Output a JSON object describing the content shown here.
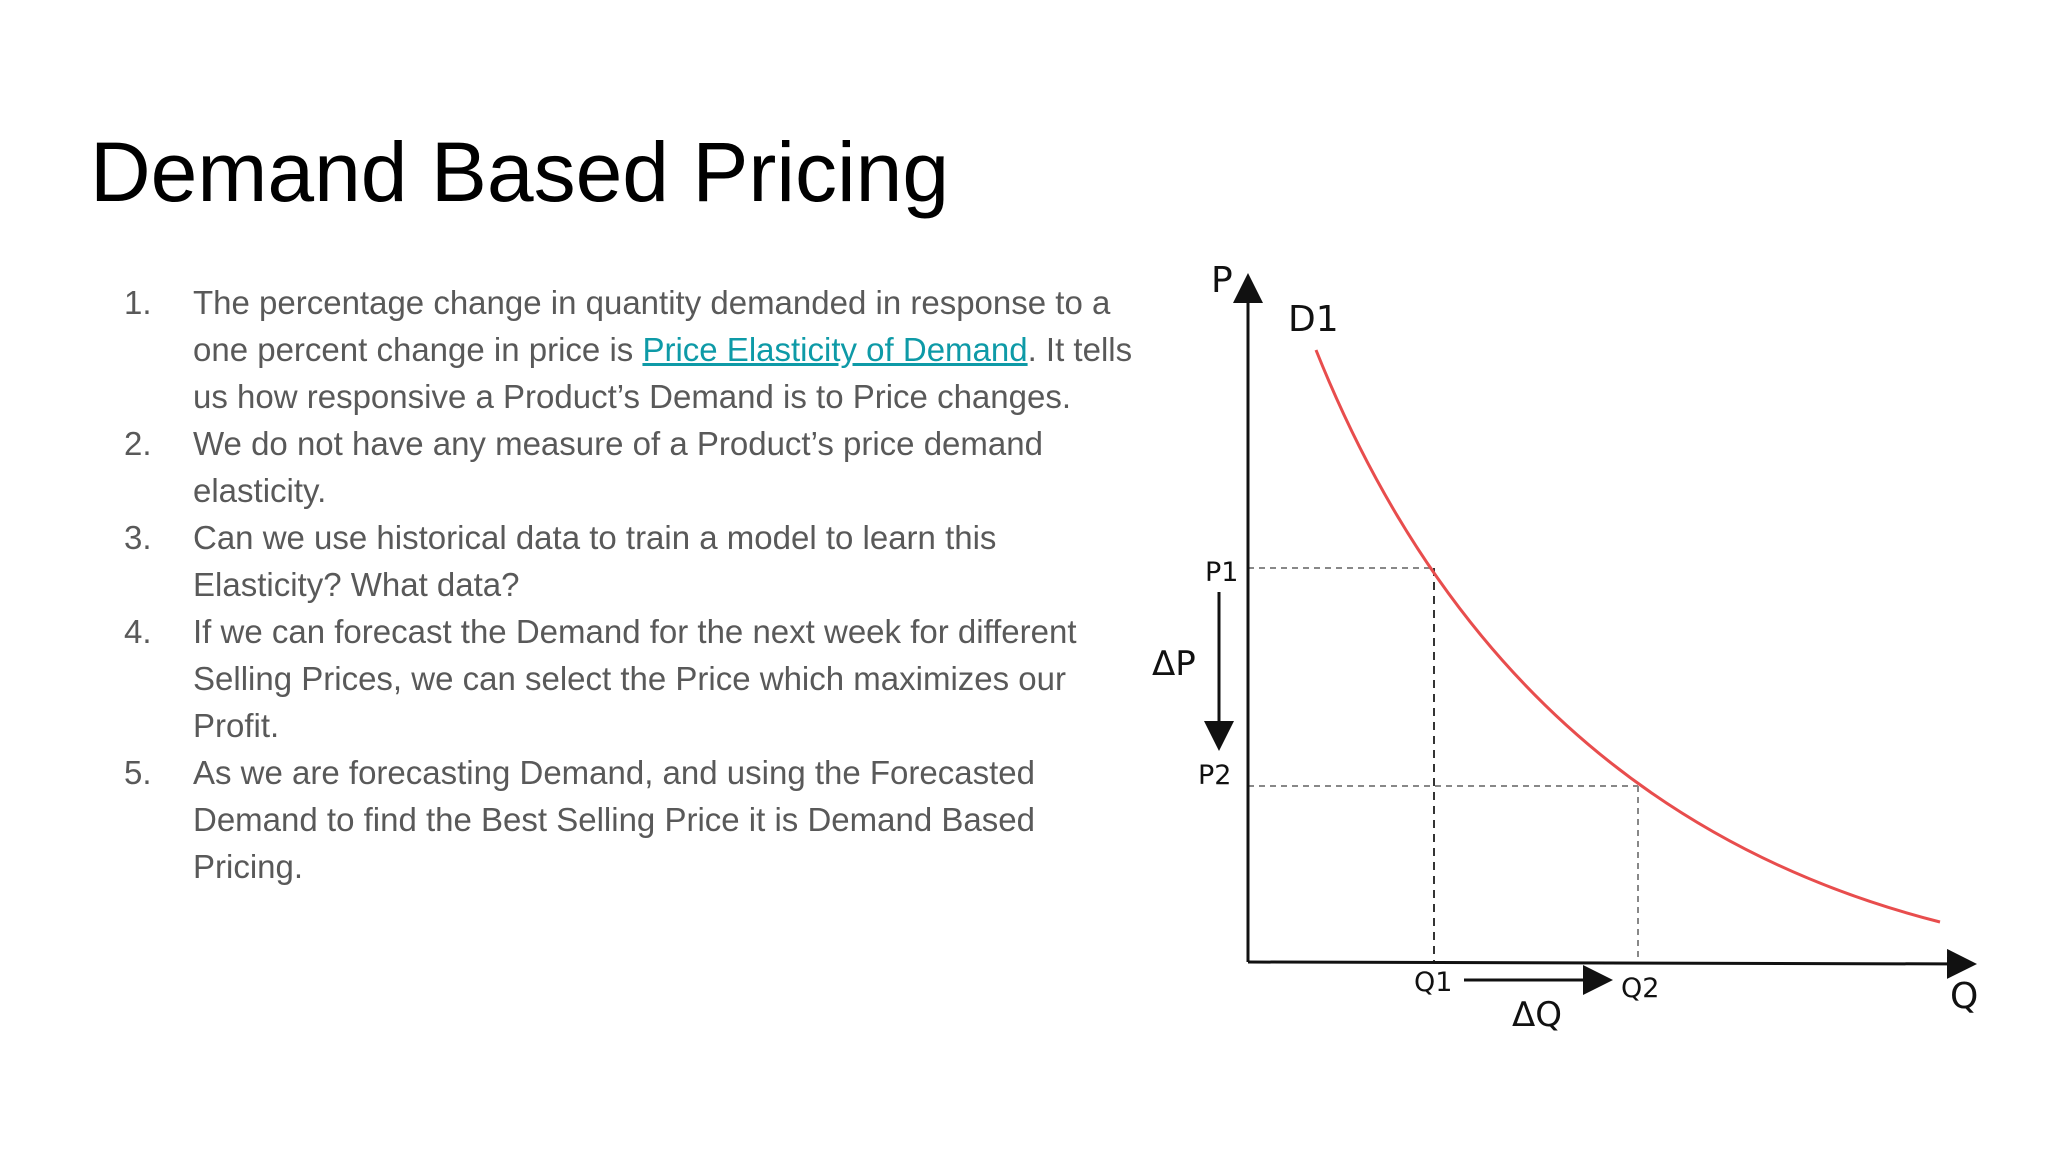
{
  "slide": {
    "title": "Demand Based Pricing",
    "items": [
      {
        "number": "1.",
        "before": "The percentage change in quantity demanded in response to a one percent change in price is ",
        "link": "Price Elasticity of Demand",
        "after": ". It tells us how responsive a Product’s Demand is to Price changes."
      },
      {
        "number": "2.",
        "text": "We do not have any measure of a Product’s price demand elasticity."
      },
      {
        "number": "3.",
        "text": "Can we use historical data to train a model to learn this Elasticity? What data?"
      },
      {
        "number": "4.",
        "text": "If we can forecast the Demand for the next week for different Selling Prices, we can select the Price which maximizes our Profit."
      },
      {
        "number": "5.",
        "text": "As we are forecasting Demand, and using the Forecasted Demand to find the Best Selling Price it is Demand Based Pricing."
      }
    ]
  },
  "diagram": {
    "curve_label": "D1",
    "y_axis_label": "P",
    "x_axis_label": "Q",
    "p1_label": "P1",
    "p2_label": "P2",
    "q1_label": "Q1",
    "q2_label": "Q2",
    "delta_p_label": "ΔP",
    "delta_q_label": "ΔQ",
    "curve_color": "#e84d4d",
    "axis_color": "#111111",
    "guide_color": "#888888"
  }
}
